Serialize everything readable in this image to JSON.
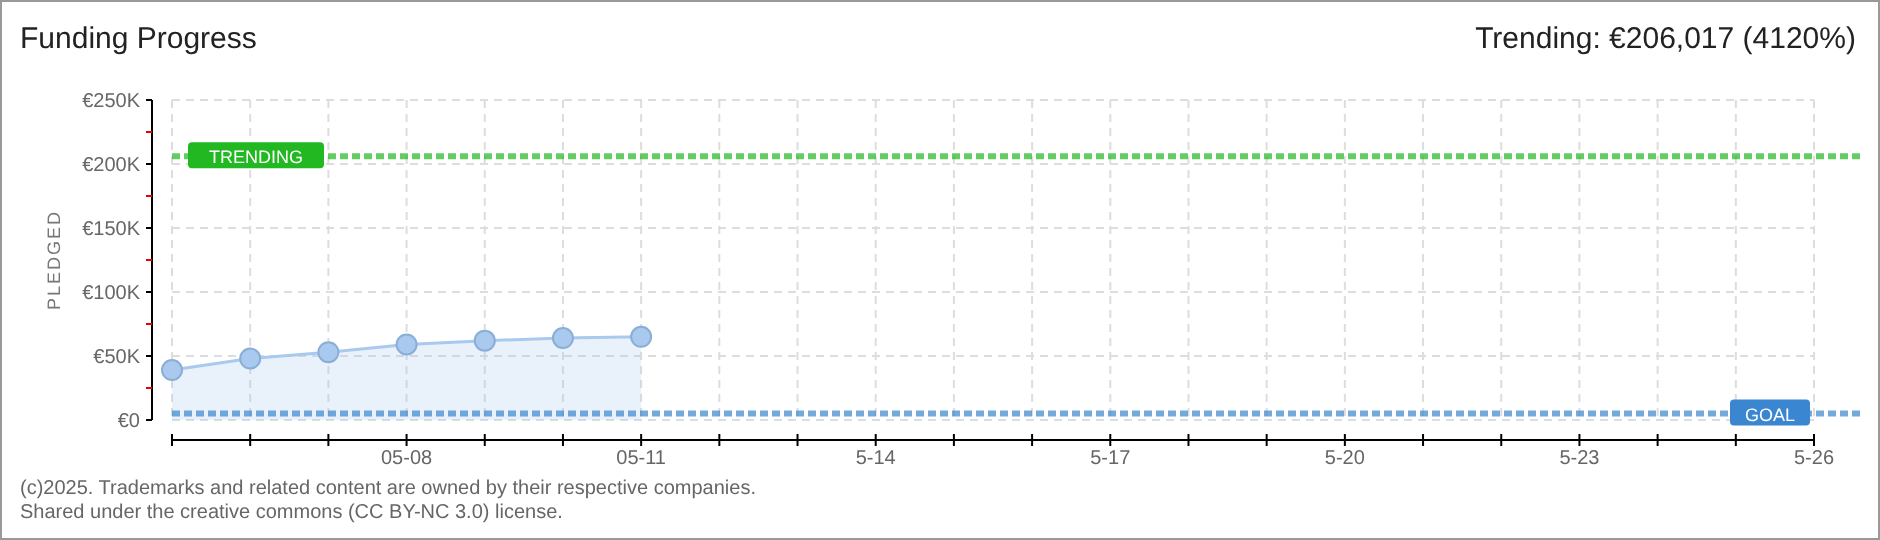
{
  "chart_data": {
    "type": "area",
    "title": "Funding Progress",
    "ylabel": "PLEDGED",
    "x": [
      "--05-05",
      "--05-06",
      "--05-07",
      "--05-08",
      "--05-09",
      "--05-10",
      "--05-11"
    ],
    "series": [
      {
        "color": "#a9c9ee",
        "values": [
          39000,
          48000,
          53000,
          59000,
          62000,
          64000,
          65000
        ]
      }
    ],
    "xlim": [
      "--05-05",
      "--05-26"
    ],
    "xticks": [
      {
        "value": "--05-05",
        "label": null
      },
      {
        "value": "--05-06",
        "label": null
      },
      {
        "value": "--05-07",
        "label": null
      },
      {
        "value": "--05-08",
        "label": "05-08"
      },
      {
        "value": "--05-09",
        "label": null
      },
      {
        "value": "--05-10",
        "label": null
      },
      {
        "value": "--05-11",
        "label": "05-11"
      },
      {
        "value": "--05-12",
        "label": null
      },
      {
        "value": "--05-13",
        "label": null
      },
      {
        "value": "--05-14",
        "label": "5-14"
      },
      {
        "value": "--05-15",
        "label": null
      },
      {
        "value": "--05-16",
        "label": null
      },
      {
        "value": "--05-17",
        "label": "5-17"
      },
      {
        "value": "--05-18",
        "label": null
      },
      {
        "value": "--05-19",
        "label": null
      },
      {
        "value": "--05-20",
        "label": "5-20"
      },
      {
        "value": "--05-21",
        "label": null
      },
      {
        "value": "--05-22",
        "label": null
      },
      {
        "value": "--05-23",
        "label": "5-23"
      },
      {
        "value": "--05-24",
        "label": null
      },
      {
        "value": "--05-25",
        "label": null
      },
      {
        "value": "--05-26",
        "label": "5-26"
      }
    ],
    "ylim": [
      0,
      250000
    ],
    "yticks": [
      {
        "value": 0,
        "label": "€0"
      },
      {
        "value": 25000,
        "label": null
      },
      {
        "value": 50000,
        "label": "€50K"
      },
      {
        "value": 75000,
        "label": null
      },
      {
        "value": 100000,
        "label": "€100K"
      },
      {
        "value": 125000,
        "label": null
      },
      {
        "value": 150000,
        "label": "€150K"
      },
      {
        "value": 175000,
        "label": null
      },
      {
        "value": 200000,
        "label": "€200K"
      },
      {
        "value": 225000,
        "label": null
      },
      {
        "value": 250000,
        "label": "€250K"
      }
    ],
    "grid": true,
    "marker": "circle",
    "ref_lines": [
      {
        "axis": "y",
        "value": 206017,
        "label": "TRENDING",
        "color": "#22b822",
        "line_style": "dashed"
      },
      {
        "axis": "y",
        "value": 5000,
        "label": "GOAL",
        "color": "#3a86d0",
        "line_style": "dashed"
      }
    ],
    "annotations": [
      "Trending: €206,017 (4120%)",
      "(c)2025. Trademarks and related content are owned by their respective companies.",
      "Shared under the creative commons (CC BY-NC 3.0) license."
    ]
  }
}
